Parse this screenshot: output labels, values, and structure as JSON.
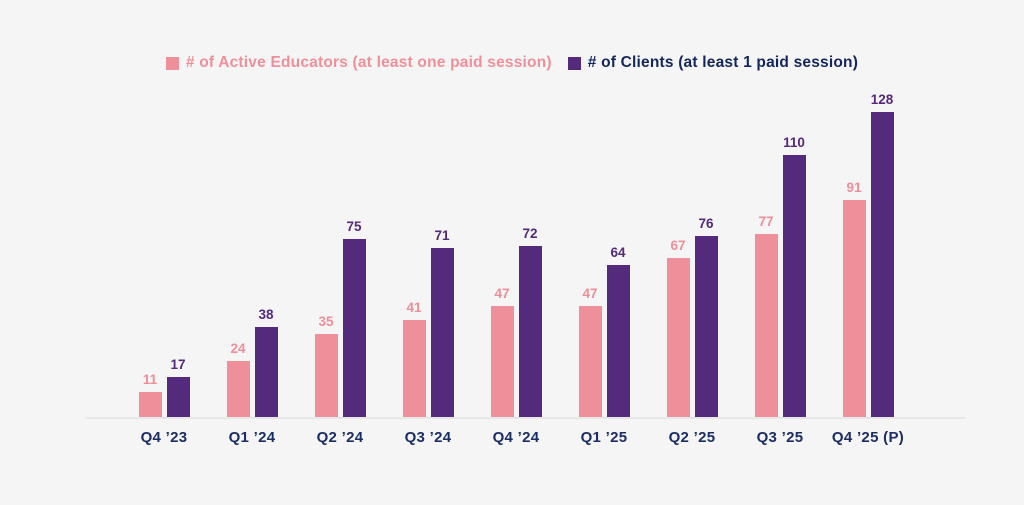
{
  "colors": {
    "background": "#F6F5F6",
    "axis_line": "#E7E6E9",
    "x_label": "#1B2E63",
    "educators_pink": "#EF8F99",
    "clients_purple": "#542A7C",
    "educators_label": "#EE8E98",
    "clients_label": "#53297B",
    "legend_clients_text": "#14275C"
  },
  "chart_data": {
    "type": "bar",
    "title": "",
    "categories": [
      "Q4 ’23",
      "Q1 ’24",
      "Q2 ’24",
      "Q3 ’24",
      "Q4 ’24",
      "Q1 ’25",
      "Q2 ’25",
      "Q3 ’25",
      "Q4 ’25 (P)"
    ],
    "series": [
      {
        "name": "# of Active Educators (at least one paid session)",
        "values": [
          11,
          24,
          35,
          41,
          47,
          47,
          67,
          77,
          91
        ],
        "color": "#EF8F99",
        "label_color": "#EE8E98",
        "legend_text_color": "#EF8F99"
      },
      {
        "name": "# of Clients (at least 1 paid session)",
        "values": [
          17,
          38,
          75,
          71,
          72,
          64,
          76,
          110,
          128
        ],
        "color": "#542A7C",
        "label_color": "#53297B",
        "legend_text_color": "#14275C"
      }
    ],
    "xlabel": "",
    "ylabel": "",
    "ylim": [
      0,
      128
    ],
    "grid": false,
    "legend_position": "top-center",
    "data_labels": true
  }
}
